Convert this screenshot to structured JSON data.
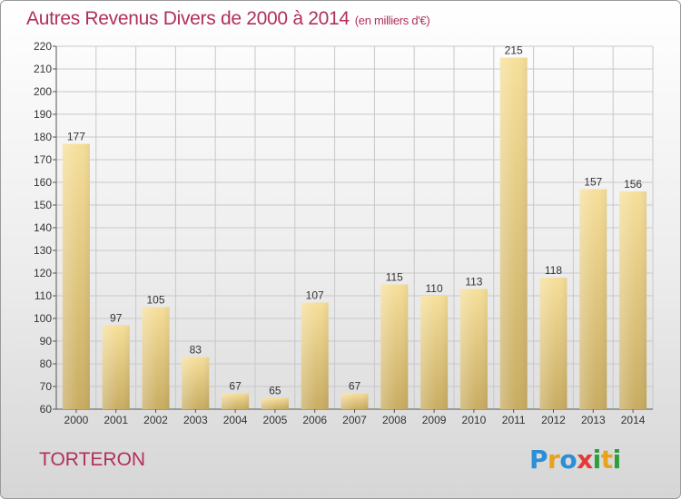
{
  "title": "Autres Revenus Divers de 2000 à 2014",
  "subtitle": "(en milliers d'€)",
  "region": "TORTERON",
  "logo": {
    "text": "Proxiti",
    "letters": [
      {
        "ch": "P",
        "color": "#2b8fd6"
      },
      {
        "ch": "r",
        "color": "#e8a21b"
      },
      {
        "ch": "o",
        "color": "#2b8fd6"
      },
      {
        "ch": "x",
        "color": "#e23a3a"
      },
      {
        "ch": "i",
        "color": "#2e9e3b"
      },
      {
        "ch": "t",
        "color": "#e8a21b"
      },
      {
        "ch": "i",
        "color": "#2e9e3b"
      }
    ]
  },
  "colors": {
    "title": "#b0305a",
    "bar_top": "#f4dd98",
    "bar_bottom": "#c9ad62",
    "grid": "#c8c8c8"
  },
  "chart_data": {
    "type": "bar",
    "categories": [
      "2000",
      "2001",
      "2002",
      "2003",
      "2004",
      "2005",
      "2006",
      "2007",
      "2008",
      "2009",
      "2010",
      "2011",
      "2012",
      "2013",
      "2014"
    ],
    "values": [
      177,
      97,
      105,
      83,
      67,
      65,
      107,
      67,
      115,
      110,
      113,
      215,
      118,
      157,
      156
    ],
    "ylim": [
      60,
      220
    ],
    "yticks": [
      60,
      70,
      80,
      90,
      100,
      110,
      120,
      130,
      140,
      150,
      160,
      170,
      180,
      190,
      200,
      210,
      220
    ],
    "grid": true,
    "legend": "none",
    "xlabel": "",
    "ylabel": ""
  }
}
